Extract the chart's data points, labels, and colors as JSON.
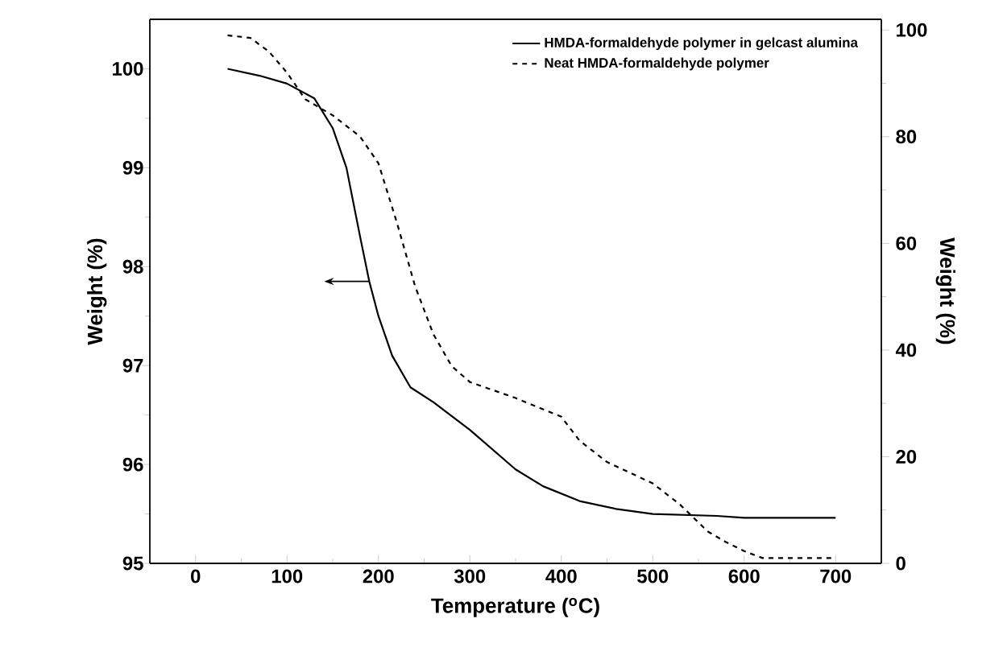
{
  "chart_data": {
    "type": "line",
    "xlabel": "Temperature ($^{o}$C)",
    "ylabel": "Weight (%)",
    "y2label": "Weight (%)",
    "xlim": [
      -50,
      750
    ],
    "xticks": [
      0,
      100,
      200,
      300,
      400,
      500,
      600,
      700
    ],
    "ylim": [
      95,
      100.5
    ],
    "yticks": [
      95,
      96,
      97,
      98,
      99,
      100
    ],
    "y2lim": [
      0,
      102
    ],
    "y2ticks": [
      0,
      20,
      40,
      60,
      80,
      100
    ],
    "legend": "top right",
    "marker": "none",
    "series": [
      {
        "name": "HMDA-formaldehyde polymer in gelcast alumina",
        "color": "#000000",
        "line_style": "solid",
        "x": [
          35,
          70,
          100,
          130,
          150,
          165,
          180,
          190,
          200,
          215,
          235,
          260,
          300,
          350,
          380,
          420,
          460,
          500,
          570,
          600,
          650,
          700
        ],
        "values": [
          100.0,
          99.93,
          99.85,
          99.7,
          99.4,
          99.0,
          98.3,
          97.85,
          97.5,
          97.1,
          96.78,
          96.63,
          96.35,
          95.95,
          95.78,
          95.63,
          95.55,
          95.5,
          95.48,
          95.46,
          95.46,
          95.46
        ]
      },
      {
        "name": "Neat HMDA-formaldehyde polymer",
        "color": "#000000",
        "line_style": "dashed",
        "axis": "y2",
        "x": [
          35,
          60,
          80,
          100,
          120,
          150,
          180,
          200,
          220,
          240,
          260,
          280,
          300,
          350,
          400,
          420,
          450,
          500,
          530,
          560,
          580,
          600,
          620,
          650,
          700
        ],
        "values": [
          99,
          98.5,
          96,
          92,
          87,
          84,
          80,
          75,
          64,
          52,
          43,
          37,
          34,
          31,
          27.5,
          23,
          19,
          15,
          11,
          6,
          4,
          2.3,
          1,
          1,
          1
        ]
      }
    ]
  }
}
